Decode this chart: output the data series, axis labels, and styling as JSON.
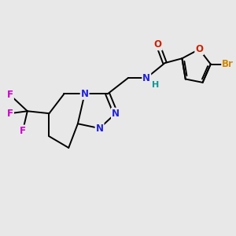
{
  "background_color": "#e8e8e8",
  "figsize": [
    3.0,
    3.0
  ],
  "dpi": 100,
  "colors": {
    "C": "#000000",
    "N": "#2222dd",
    "O": "#cc2200",
    "F": "#cc00cc",
    "Br": "#cc8800",
    "H": "#009999",
    "bond": "#000000"
  },
  "bond_width": 1.4
}
